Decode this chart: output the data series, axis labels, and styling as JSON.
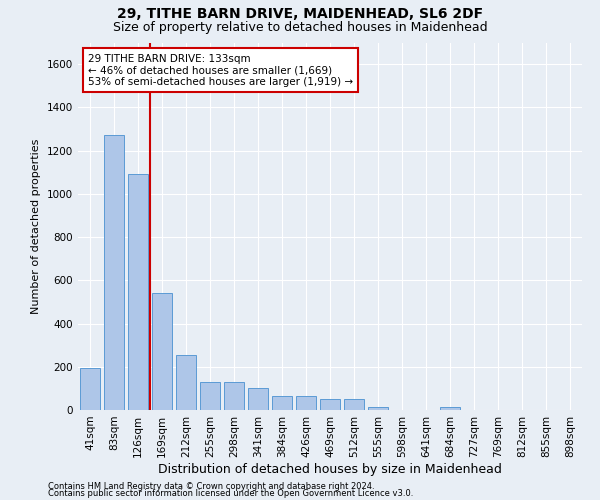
{
  "title1": "29, TITHE BARN DRIVE, MAIDENHEAD, SL6 2DF",
  "title2": "Size of property relative to detached houses in Maidenhead",
  "xlabel": "Distribution of detached houses by size in Maidenhead",
  "ylabel": "Number of detached properties",
  "footnote1": "Contains HM Land Registry data © Crown copyright and database right 2024.",
  "footnote2": "Contains public sector information licensed under the Open Government Licence v3.0.",
  "bin_labels": [
    "41sqm",
    "83sqm",
    "126sqm",
    "169sqm",
    "212sqm",
    "255sqm",
    "298sqm",
    "341sqm",
    "384sqm",
    "426sqm",
    "469sqm",
    "512sqm",
    "555sqm",
    "598sqm",
    "641sqm",
    "684sqm",
    "727sqm",
    "769sqm",
    "812sqm",
    "855sqm",
    "898sqm"
  ],
  "bar_heights": [
    195,
    1270,
    1090,
    540,
    255,
    130,
    130,
    100,
    65,
    65,
    50,
    50,
    15,
    0,
    0,
    15,
    0,
    0,
    0,
    0,
    0
  ],
  "bar_color": "#aec6e8",
  "bar_edge_color": "#5b9bd5",
  "property_size_label": "133",
  "red_line_x": 2.5,
  "red_line_color": "#cc0000",
  "annotation_text": "29 TITHE BARN DRIVE: 133sqm\n← 46% of detached houses are smaller (1,669)\n53% of semi-detached houses are larger (1,919) →",
  "annotation_box_color": "#ffffff",
  "annotation_box_edge": "#cc0000",
  "ylim": [
    0,
    1700
  ],
  "yticks": [
    0,
    200,
    400,
    600,
    800,
    1000,
    1200,
    1400,
    1600
  ],
  "background_color": "#e8eef5",
  "grid_color": "#ffffff",
  "title_fontsize": 10,
  "subtitle_fontsize": 9,
  "annotation_fontsize": 7.5,
  "tick_fontsize": 7.5,
  "ylabel_fontsize": 8,
  "xlabel_fontsize": 9
}
